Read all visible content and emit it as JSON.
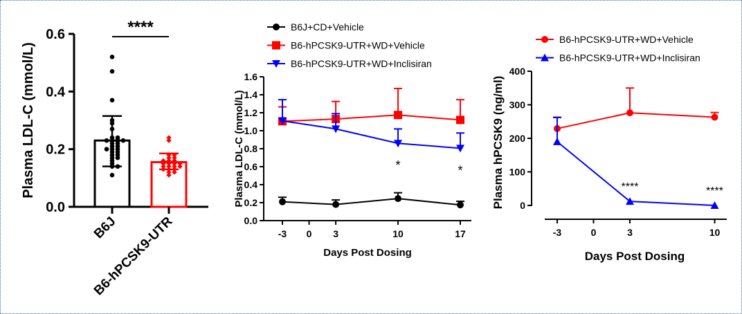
{
  "chart_data": [
    {
      "type": "bar",
      "ylabel": "Plasma LDL-C (mmol/L)",
      "ylim": [
        0,
        0.6
      ],
      "yticks": [
        "0.0",
        "0.2",
        "0.4",
        "0.6"
      ],
      "categories": [
        "B6J",
        "B6-hPCSK9-UTR"
      ],
      "colors": [
        "#000000",
        "#ff0000"
      ],
      "means": [
        0.23,
        0.155
      ],
      "sd_upper": [
        0.315,
        0.185
      ],
      "sd_lower": [
        0.14,
        0.13
      ],
      "points": [
        [
          0.52,
          0.47,
          0.37,
          0.3,
          0.29,
          0.27,
          0.24,
          0.24,
          0.23,
          0.23,
          0.23,
          0.23,
          0.22,
          0.22,
          0.21,
          0.21,
          0.2,
          0.2,
          0.2,
          0.19,
          0.19,
          0.18,
          0.18,
          0.17,
          0.17,
          0.16,
          0.15,
          0.14,
          0.14,
          0.11
        ],
        [
          0.24,
          0.23,
          0.18,
          0.18,
          0.17,
          0.17,
          0.16,
          0.16,
          0.16,
          0.15,
          0.15,
          0.15,
          0.15,
          0.14,
          0.14,
          0.14,
          0.14,
          0.13,
          0.13,
          0.13,
          0.12,
          0.12,
          0.11
        ]
      ],
      "significance": "****"
    },
    {
      "type": "line",
      "xlabel": "Days Post Dosing",
      "ylabel": "Plasma LDL-C (mmol/L)",
      "ylim": [
        0,
        1.6
      ],
      "yticks": [
        "0.0",
        "0.2",
        "0.4",
        "0.6",
        "0.8",
        "1.0",
        "1.2",
        "1.4",
        "1.6"
      ],
      "xticks": [
        "-3",
        "0",
        "3",
        "10",
        "17"
      ],
      "x": [
        -3,
        3,
        10,
        17
      ],
      "legend": "top",
      "series": [
        {
          "name": "B6J+CD+Vehicle",
          "color": "#000000",
          "marker": "circle",
          "values": [
            0.21,
            0.18,
            0.245,
            0.175
          ],
          "err_upper": [
            0.26,
            0.23,
            0.31,
            0.215
          ]
        },
        {
          "name": "B6-hPCSK9-UTR+WD+Vehicle",
          "color": "#ff0000",
          "marker": "square",
          "values": [
            1.105,
            1.13,
            1.175,
            1.12
          ],
          "err_upper": [
            1.265,
            1.325,
            1.47,
            1.345
          ]
        },
        {
          "name": "B6-hPCSK9-UTR+WD+Inclisiran",
          "color": "#0000ff",
          "marker": "triangle-down",
          "values": [
            1.11,
            1.02,
            0.86,
            0.805
          ],
          "err_upper": [
            1.345,
            1.19,
            1.02,
            0.975
          ]
        }
      ],
      "annotations": [
        {
          "x": 10,
          "text": "*"
        },
        {
          "x": 17,
          "text": "*"
        }
      ]
    },
    {
      "type": "line",
      "xlabel": "Days Post Dosing",
      "ylabel": "Plasma hPCSK9 (ng/ml)",
      "ylim": [
        0,
        400
      ],
      "yticks": [
        "0",
        "100",
        "200",
        "300",
        "400"
      ],
      "xticks": [
        "-3",
        "0",
        "3",
        "10"
      ],
      "x": [
        -3,
        3,
        10
      ],
      "legend": "top",
      "series": [
        {
          "name": "B6-hPCSK9-UTR+WD+Vehicle",
          "color": "#ff0000",
          "marker": "circle",
          "values": [
            229,
            276,
            263
          ],
          "err_upper": [
            263,
            350,
            277
          ]
        },
        {
          "name": "B6-hPCSK9-UTR+WD+Inclisiran",
          "color": "#0000ff",
          "marker": "triangle-up",
          "values": [
            190,
            12,
            0
          ],
          "err_upper": [
            262,
            12,
            0
          ]
        }
      ],
      "annotations": [
        {
          "x": 3,
          "text": "****"
        },
        {
          "x": 10,
          "text": "****"
        }
      ]
    }
  ]
}
